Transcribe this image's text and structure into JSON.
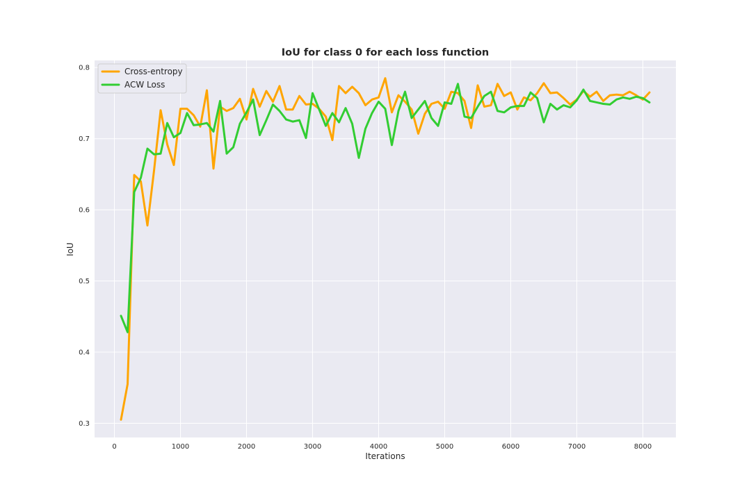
{
  "chart_data": {
    "type": "line",
    "title": "IoU for class 0 for each loss function",
    "xlabel": "Iterations",
    "ylabel": "IoU",
    "xlim": [
      -300,
      8500
    ],
    "ylim": [
      0.28,
      0.81
    ],
    "xticks": [
      0,
      1000,
      2000,
      3000,
      4000,
      5000,
      6000,
      7000,
      8000
    ],
    "yticks": [
      0.3,
      0.4,
      0.5,
      0.6,
      0.7,
      0.8
    ],
    "grid": true,
    "legend_position": "upper left",
    "colors": {
      "background": "#eaeaf2",
      "grid": "#ffffff"
    },
    "x": [
      100,
      200,
      300,
      400,
      500,
      600,
      700,
      800,
      900,
      1000,
      1100,
      1200,
      1300,
      1400,
      1500,
      1600,
      1700,
      1800,
      1900,
      2000,
      2100,
      2200,
      2300,
      2400,
      2500,
      2600,
      2700,
      2800,
      2900,
      3000,
      3100,
      3200,
      3300,
      3400,
      3500,
      3600,
      3700,
      3800,
      3900,
      4000,
      4100,
      4200,
      4300,
      4400,
      4500,
      4600,
      4700,
      4800,
      4900,
      5000,
      5100,
      5200,
      5300,
      5400,
      5500,
      5600,
      5700,
      5800,
      5900,
      6000,
      6100,
      6200,
      6300,
      6400,
      6500,
      6600,
      6700,
      6800,
      6900,
      7000,
      7100,
      7200,
      7300,
      7400,
      7500,
      7600,
      7700,
      7800,
      7900,
      8000,
      8100
    ],
    "series": [
      {
        "name": "Cross-entropy",
        "color": "#ffa500",
        "values": [
          0.305,
          0.355,
          0.649,
          0.64,
          0.578,
          0.655,
          0.74,
          0.692,
          0.663,
          0.742,
          0.742,
          0.733,
          0.717,
          0.768,
          0.658,
          0.745,
          0.739,
          0.743,
          0.756,
          0.727,
          0.77,
          0.745,
          0.767,
          0.752,
          0.774,
          0.741,
          0.741,
          0.76,
          0.748,
          0.749,
          0.742,
          0.731,
          0.698,
          0.774,
          0.764,
          0.773,
          0.764,
          0.747,
          0.755,
          0.758,
          0.785,
          0.737,
          0.761,
          0.752,
          0.741,
          0.707,
          0.735,
          0.749,
          0.752,
          0.742,
          0.766,
          0.764,
          0.753,
          0.715,
          0.775,
          0.745,
          0.747,
          0.777,
          0.76,
          0.765,
          0.741,
          0.758,
          0.754,
          0.764,
          0.778,
          0.764,
          0.765,
          0.757,
          0.748,
          0.755,
          0.767,
          0.759,
          0.766,
          0.753,
          0.761,
          0.762,
          0.761,
          0.766,
          0.761,
          0.755,
          0.765
        ]
      },
      {
        "name": "ACW Loss",
        "color": "#32cd32",
        "values": [
          0.451,
          0.428,
          0.625,
          0.645,
          0.686,
          0.678,
          0.679,
          0.722,
          0.702,
          0.708,
          0.736,
          0.719,
          0.72,
          0.722,
          0.71,
          0.753,
          0.679,
          0.688,
          0.721,
          0.737,
          0.755,
          0.705,
          0.726,
          0.748,
          0.739,
          0.727,
          0.724,
          0.726,
          0.701,
          0.764,
          0.741,
          0.718,
          0.736,
          0.723,
          0.743,
          0.721,
          0.673,
          0.714,
          0.736,
          0.752,
          0.742,
          0.691,
          0.739,
          0.766,
          0.729,
          0.741,
          0.753,
          0.729,
          0.718,
          0.751,
          0.749,
          0.777,
          0.731,
          0.729,
          0.745,
          0.76,
          0.766,
          0.739,
          0.737,
          0.744,
          0.746,
          0.746,
          0.765,
          0.757,
          0.723,
          0.749,
          0.741,
          0.747,
          0.744,
          0.754,
          0.769,
          0.753,
          0.751,
          0.749,
          0.748,
          0.755,
          0.758,
          0.756,
          0.759,
          0.757,
          0.751
        ]
      }
    ]
  }
}
